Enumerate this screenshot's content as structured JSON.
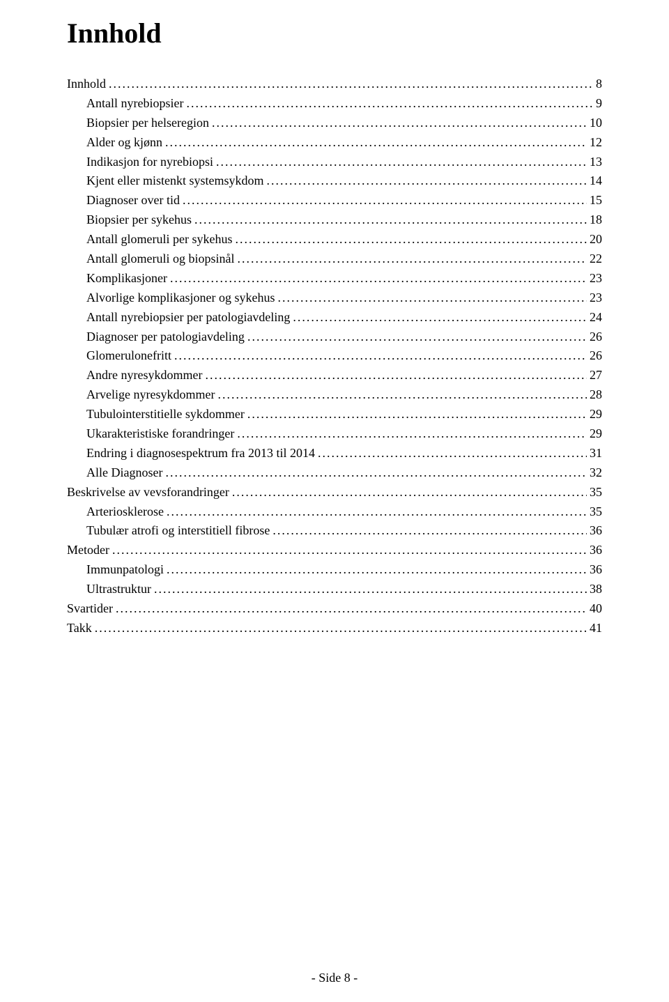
{
  "title": "Innhold",
  "toc": [
    {
      "label": "Innhold",
      "page": "8",
      "indent": 0
    },
    {
      "label": "Antall nyrebiopsier",
      "page": "9",
      "indent": 1
    },
    {
      "label": "Biopsier per helseregion",
      "page": "10",
      "indent": 1
    },
    {
      "label": "Alder og kjønn",
      "page": "12",
      "indent": 1
    },
    {
      "label": "Indikasjon for nyrebiopsi",
      "page": "13",
      "indent": 1
    },
    {
      "label": "Kjent eller mistenkt systemsykdom",
      "page": "14",
      "indent": 1
    },
    {
      "label": "Diagnoser over tid",
      "page": "15",
      "indent": 1
    },
    {
      "label": "Biopsier per sykehus",
      "page": "18",
      "indent": 1
    },
    {
      "label": "Antall glomeruli per sykehus",
      "page": "20",
      "indent": 1
    },
    {
      "label": "Antall glomeruli og biopsinål",
      "page": "22",
      "indent": 1
    },
    {
      "label": "Komplikasjoner",
      "page": "23",
      "indent": 1
    },
    {
      "label": "Alvorlige komplikasjoner og sykehus",
      "page": "23",
      "indent": 1
    },
    {
      "label": "Antall nyrebiopsier per patologiavdeling",
      "page": "24",
      "indent": 1
    },
    {
      "label": "Diagnoser per patologiavdeling",
      "page": "26",
      "indent": 1
    },
    {
      "label": "Glomerulonefritt",
      "page": "26",
      "indent": 1
    },
    {
      "label": "Andre nyresykdommer",
      "page": "27",
      "indent": 1
    },
    {
      "label": "Arvelige nyresykdommer",
      "page": "28",
      "indent": 1
    },
    {
      "label": "Tubulointerstitielle sykdommer",
      "page": "29",
      "indent": 1
    },
    {
      "label": "Ukarakteristiske forandringer",
      "page": "29",
      "indent": 1
    },
    {
      "label": "Endring i diagnosespektrum fra 2013 til 2014",
      "page": "31",
      "indent": 1
    },
    {
      "label": "Alle Diagnoser",
      "page": "32",
      "indent": 1
    },
    {
      "label": "Beskrivelse av vevsforandringer",
      "page": "35",
      "indent": 0
    },
    {
      "label": "Arteriosklerose",
      "page": "35",
      "indent": 1
    },
    {
      "label": "Tubulær atrofi og interstitiell fibrose",
      "page": "36",
      "indent": 1
    },
    {
      "label": "Metoder",
      "page": "36",
      "indent": 0
    },
    {
      "label": "Immunpatologi",
      "page": "36",
      "indent": 1
    },
    {
      "label": "Ultrastruktur",
      "page": "38",
      "indent": 1
    },
    {
      "label": "Svartider",
      "page": "40",
      "indent": 0
    },
    {
      "label": "Takk",
      "page": "41",
      "indent": 0
    }
  ],
  "footer": "-  Side 8  -"
}
